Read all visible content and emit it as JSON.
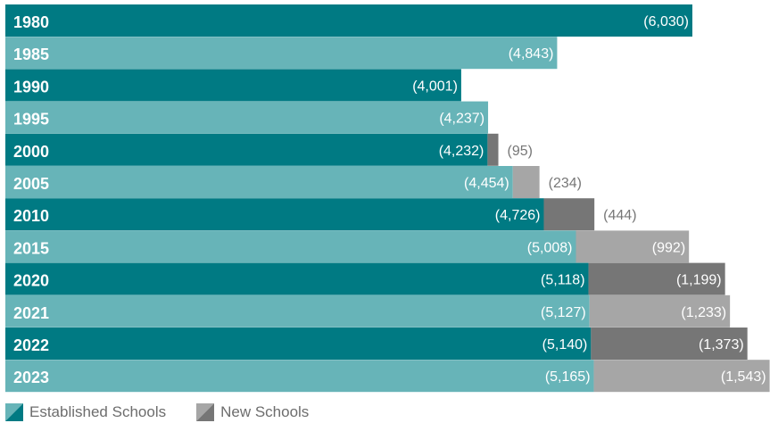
{
  "chart_data": {
    "type": "bar",
    "orientation": "horizontal",
    "stacked": true,
    "title": "",
    "xlabel": "",
    "ylabel": "",
    "xlim": [
      0,
      6700
    ],
    "grid": false,
    "legend_position": "bottom-left",
    "categories": [
      "1980",
      "1985",
      "1990",
      "1995",
      "2000",
      "2005",
      "2010",
      "2015",
      "2020",
      "2021",
      "2022",
      "2023"
    ],
    "value_labels": {
      "established": [
        "(6,030)",
        "(4,843)",
        "(4,001)",
        "(4,237)",
        "(4,232)",
        "(4,454)",
        "(4,726)",
        "(5,008)",
        "(5,118)",
        "(5,127)",
        "(5,140)",
        "(5,165)"
      ],
      "new": [
        "",
        "",
        "",
        "",
        "(95)",
        "(234)",
        "(444)",
        "(992)",
        "(1,199)",
        "(1,233)",
        "(1,373)",
        "(1,543)"
      ]
    },
    "series": [
      {
        "name": "Established Schools",
        "key": "established",
        "values": [
          6030,
          4843,
          4001,
          4237,
          4232,
          4454,
          4726,
          5008,
          5118,
          5127,
          5140,
          5165
        ]
      },
      {
        "name": "New Schools",
        "key": "new",
        "values": [
          0,
          0,
          0,
          0,
          95,
          234,
          444,
          992,
          1199,
          1233,
          1373,
          1543
        ]
      }
    ]
  },
  "colors": {
    "established_dark": "#007a83",
    "established_light": "#67b4b8",
    "new_dark": "#767676",
    "new_light": "#a6a6a6",
    "label_on_bar": "#ffffff",
    "label_outside": "#777777",
    "category_label": "#ffffff"
  },
  "legend": {
    "established_label": "Established Schools",
    "new_label": "New Schools"
  }
}
